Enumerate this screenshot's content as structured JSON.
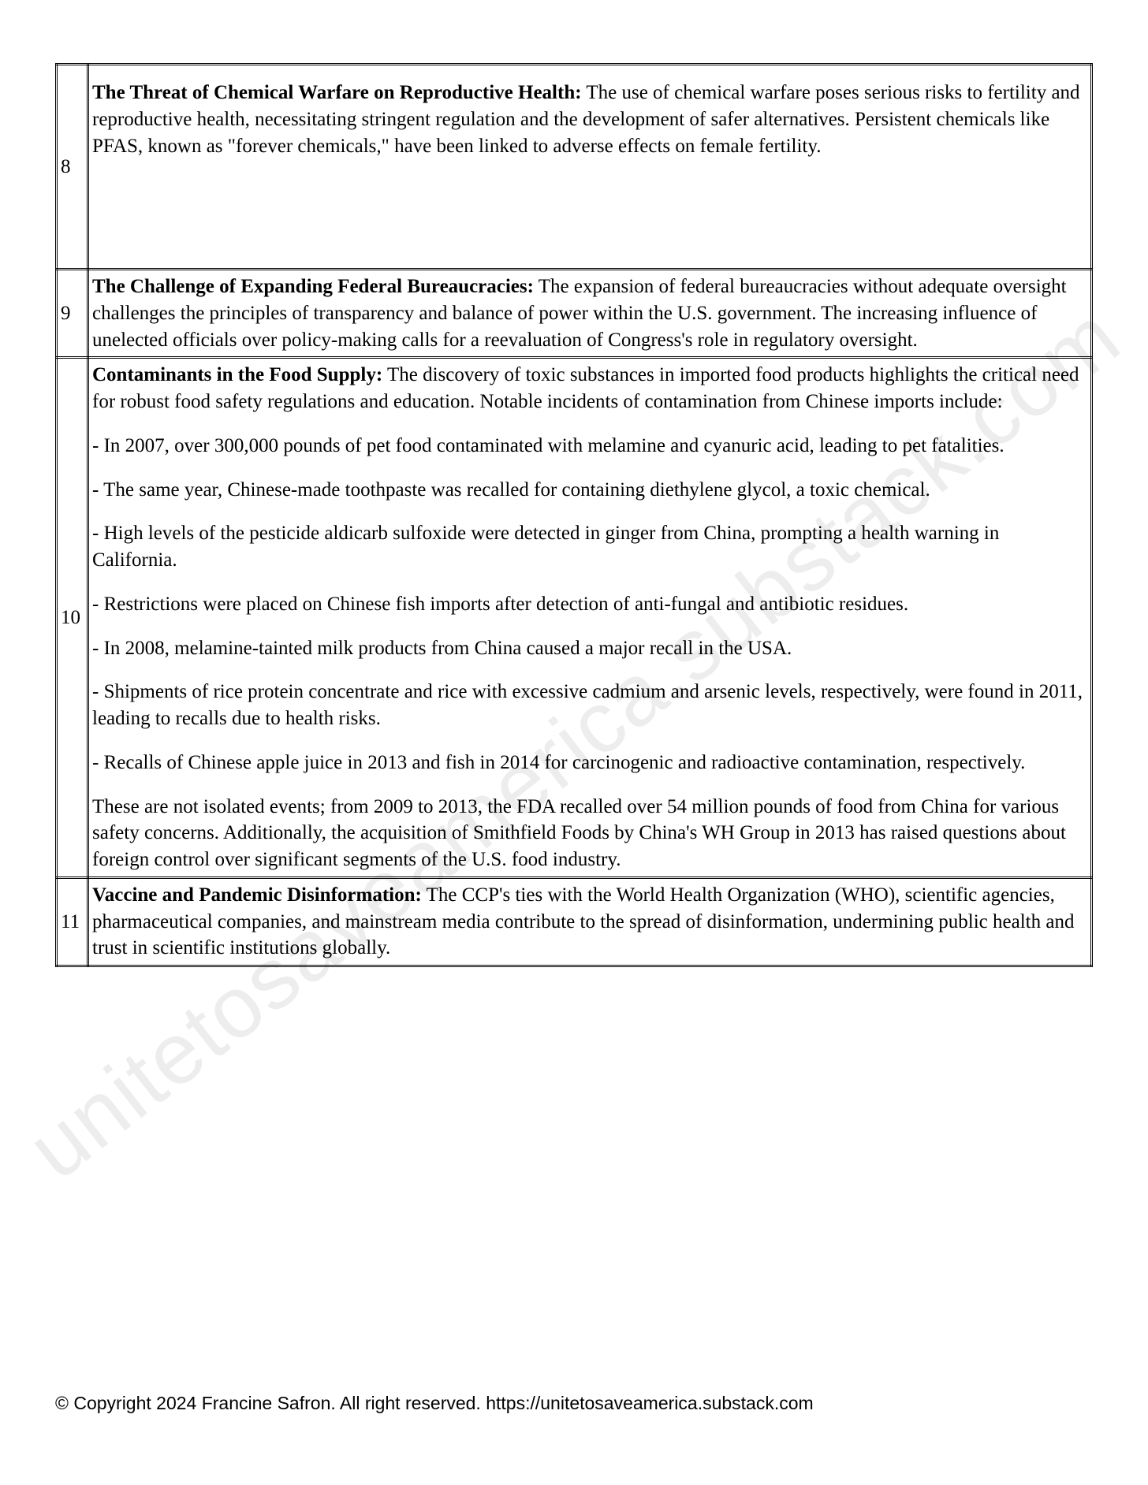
{
  "watermark": "unitetosaveamerica.substack.com",
  "rows": [
    {
      "num": "8",
      "title": "The Threat of Chemical Warfare on Reproductive Health:",
      "text": " The use of chemical warfare poses serious risks to fertility and reproductive health, necessitating stringent regulation and the development of safer alternatives. Persistent chemicals like PFAS, known as \"forever chemicals,\" have been linked to adverse effects on female fertility."
    },
    {
      "num": "9",
      "title": "The Challenge of Expanding Federal Bureaucracies:",
      "text": " The expansion of federal bureaucracies without adequate oversight challenges the principles of transparency and balance of power within the U.S. government. The increasing influence of unelected officials over policy-making calls for a reevaluation of Congress's role in regulatory oversight."
    },
    {
      "num": "10",
      "title": "Contaminants in the Food Supply:",
      "intro": " The discovery of toxic substances in imported food products highlights the critical need for robust food safety regulations and education. Notable incidents of contamination from Chinese imports include:",
      "b1": "- In 2007, over 300,000 pounds of pet food contaminated with melamine and cyanuric acid, leading to pet fatalities.",
      "b2": "- The same year, Chinese-made toothpaste was recalled for containing diethylene glycol, a toxic chemical.",
      "b3": "- High levels of the pesticide aldicarb sulfoxide were detected in ginger from China, prompting a health warning in California.",
      "b4": "- Restrictions were placed on Chinese fish imports after detection of anti-fungal and antibiotic residues.",
      "b5": "- In 2008, melamine-tainted milk products from China caused a major recall in the USA.",
      "b6": "- Shipments of rice protein concentrate and rice with excessive cadmium and arsenic levels, respectively, were found in 2011, leading to recalls due to health risks.",
      "b7": "- Recalls of Chinese apple juice in 2013 and fish in 2014 for carcinogenic and radioactive contamination, respectively.",
      "outro": "These are not isolated events; from 2009 to 2013, the FDA recalled over 54 million pounds of food from China for various safety concerns. Additionally, the acquisition of Smithfield Foods by China's WH Group in 2013 has raised questions about foreign control over significant segments of the U.S. food industry."
    },
    {
      "num": "11",
      "title": "Vaccine and Pandemic Disinformation:",
      "text": " The CCP's ties with the World Health Organization (WHO), scientific agencies, pharmaceutical companies, and mainstream media contribute to the spread of disinformation, undermining public health and trust in scientific institutions globally."
    }
  ],
  "footer": "© Copyright 2024 Francine Safron. All right reserved. https://unitetosaveamerica.substack.com"
}
